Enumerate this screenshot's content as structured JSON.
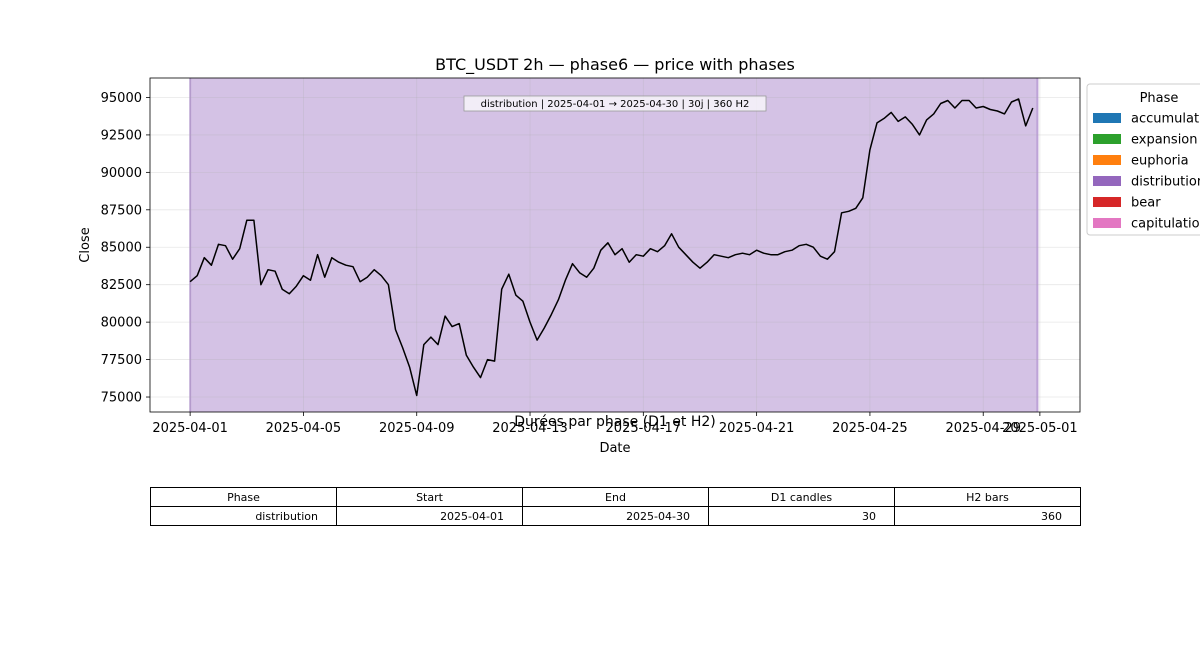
{
  "chart_data": {
    "type": "line",
    "title": "BTC_USDT 2h — phase6 — price with phases",
    "xlabel": "Date",
    "ylabel": "Close",
    "x_ticks": [
      "2025-04-01",
      "2025-04-05",
      "2025-04-09",
      "2025-04-13",
      "2025-04-17",
      "2025-04-21",
      "2025-04-25",
      "2025-04-29",
      "2025-05-01"
    ],
    "xlim": [
      "2025-03-30T14:00",
      "2025-05-02T10:00"
    ],
    "y_ticks": [
      75000,
      77500,
      80000,
      82500,
      85000,
      87500,
      90000,
      92500,
      95000
    ],
    "ylim": [
      74000,
      96300
    ],
    "grid": true,
    "line_color": "#000000",
    "series": [
      {
        "x": [
          "2025-04-01T00:00",
          "2025-04-01T06:00",
          "2025-04-01T12:00",
          "2025-04-01T18:00",
          "2025-04-02T00:00",
          "2025-04-02T06:00",
          "2025-04-02T12:00",
          "2025-04-02T18:00",
          "2025-04-03T00:00",
          "2025-04-03T06:00",
          "2025-04-03T12:00",
          "2025-04-03T18:00",
          "2025-04-04T00:00",
          "2025-04-04T06:00",
          "2025-04-04T12:00",
          "2025-04-04T18:00",
          "2025-04-05T00:00",
          "2025-04-05T06:00",
          "2025-04-05T12:00",
          "2025-04-05T18:00",
          "2025-04-06T00:00",
          "2025-04-06T06:00",
          "2025-04-06T12:00",
          "2025-04-06T18:00",
          "2025-04-07T00:00",
          "2025-04-07T06:00",
          "2025-04-07T12:00",
          "2025-04-07T18:00",
          "2025-04-08T00:00",
          "2025-04-08T06:00",
          "2025-04-08T12:00",
          "2025-04-08T18:00",
          "2025-04-09T00:00",
          "2025-04-09T06:00",
          "2025-04-09T12:00",
          "2025-04-09T18:00",
          "2025-04-10T00:00",
          "2025-04-10T06:00",
          "2025-04-10T12:00",
          "2025-04-10T18:00",
          "2025-04-11T00:00",
          "2025-04-11T06:00",
          "2025-04-11T12:00",
          "2025-04-11T18:00",
          "2025-04-12T00:00",
          "2025-04-12T06:00",
          "2025-04-12T12:00",
          "2025-04-12T18:00",
          "2025-04-13T00:00",
          "2025-04-13T06:00",
          "2025-04-13T12:00",
          "2025-04-13T18:00",
          "2025-04-14T00:00",
          "2025-04-14T06:00",
          "2025-04-14T12:00",
          "2025-04-14T18:00",
          "2025-04-15T00:00",
          "2025-04-15T06:00",
          "2025-04-15T12:00",
          "2025-04-15T18:00",
          "2025-04-16T00:00",
          "2025-04-16T06:00",
          "2025-04-16T12:00",
          "2025-04-16T18:00",
          "2025-04-17T00:00",
          "2025-04-17T06:00",
          "2025-04-17T12:00",
          "2025-04-17T18:00",
          "2025-04-18T00:00",
          "2025-04-18T06:00",
          "2025-04-18T12:00",
          "2025-04-18T18:00",
          "2025-04-19T00:00",
          "2025-04-19T06:00",
          "2025-04-19T12:00",
          "2025-04-19T18:00",
          "2025-04-20T00:00",
          "2025-04-20T06:00",
          "2025-04-20T12:00",
          "2025-04-20T18:00",
          "2025-04-21T00:00",
          "2025-04-21T06:00",
          "2025-04-21T12:00",
          "2025-04-21T18:00",
          "2025-04-22T00:00",
          "2025-04-22T06:00",
          "2025-04-22T12:00",
          "2025-04-22T18:00",
          "2025-04-23T00:00",
          "2025-04-23T06:00",
          "2025-04-23T12:00",
          "2025-04-23T18:00",
          "2025-04-24T00:00",
          "2025-04-24T06:00",
          "2025-04-24T12:00",
          "2025-04-24T18:00",
          "2025-04-25T00:00",
          "2025-04-25T06:00",
          "2025-04-25T12:00",
          "2025-04-25T18:00",
          "2025-04-26T00:00",
          "2025-04-26T06:00",
          "2025-04-26T12:00",
          "2025-04-26T18:00",
          "2025-04-27T00:00",
          "2025-04-27T06:00",
          "2025-04-27T12:00",
          "2025-04-27T18:00",
          "2025-04-28T00:00",
          "2025-04-28T06:00",
          "2025-04-28T12:00",
          "2025-04-28T18:00",
          "2025-04-29T00:00",
          "2025-04-29T06:00",
          "2025-04-29T12:00",
          "2025-04-29T18:00",
          "2025-04-30T00:00",
          "2025-04-30T06:00",
          "2025-04-30T12:00",
          "2025-04-30T18:00"
        ],
        "y": [
          82700,
          83100,
          84300,
          83800,
          85200,
          85100,
          84200,
          84900,
          86800,
          86800,
          82500,
          83500,
          83400,
          82200,
          81900,
          82400,
          83100,
          82800,
          84500,
          83000,
          84300,
          84000,
          83800,
          83700,
          82700,
          83000,
          83500,
          83100,
          82500,
          79500,
          78300,
          77000,
          75100,
          78500,
          79000,
          78500,
          80400,
          79700,
          79900,
          77800,
          77000,
          76300,
          77500,
          77400,
          82200,
          83200,
          81800,
          81400,
          80000,
          78800,
          79600,
          80500,
          81500,
          82800,
          83900,
          83300,
          83000,
          83600,
          84800,
          85300,
          84500,
          84900,
          84000,
          84500,
          84400,
          84900,
          84700,
          85100,
          85900,
          85000,
          84500,
          84000,
          83600,
          84000,
          84500,
          84400,
          84300,
          84500,
          84600,
          84500,
          84800,
          84600,
          84500,
          84500,
          84700,
          84800,
          85100,
          85200,
          85000,
          84400,
          84200,
          84700,
          87300,
          87400,
          87600,
          88300,
          91500,
          93300,
          93600,
          94000,
          93400,
          93700,
          93200,
          92500,
          93500,
          93900,
          94600,
          94800,
          94300,
          94800,
          94800,
          94300,
          94400,
          94200,
          94100,
          93900,
          94700,
          94900,
          93100,
          94300
        ]
      }
    ],
    "phase_band": {
      "color": "#9467bd",
      "start": "2025-04-01T00:00",
      "end": "2025-04-30T22:00"
    },
    "annotation": "distribution | 2025-04-01 → 2025-04-30 | 30j | 360 H2",
    "legend": {
      "title": "Phase",
      "placement": "right-outside",
      "entries": [
        {
          "label": "accumulation",
          "color": "#1f77b4"
        },
        {
          "label": "expansion",
          "color": "#2ca02c"
        },
        {
          "label": "euphoria",
          "color": "#ff7f0e"
        },
        {
          "label": "distribution",
          "color": "#9467bd"
        },
        {
          "label": "bear",
          "color": "#d62728"
        },
        {
          "label": "capitulation",
          "color": "#e377c2"
        }
      ]
    }
  },
  "table": {
    "title": "Durées par phase (D1 et H2)",
    "headers": [
      "Phase",
      "Start",
      "End",
      "D1 candles",
      "H2 bars"
    ],
    "rows": [
      [
        "distribution",
        "2025-04-01",
        "2025-04-30",
        "30",
        "360"
      ]
    ]
  }
}
